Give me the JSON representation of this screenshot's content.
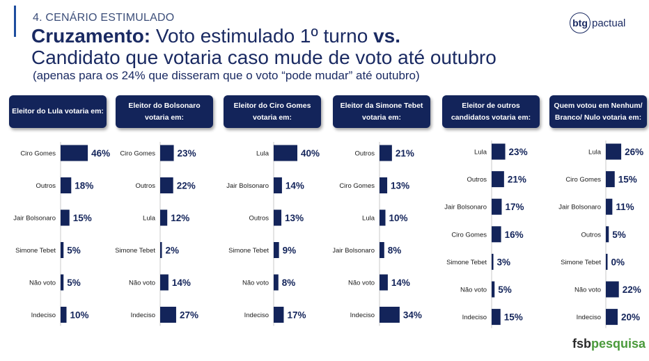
{
  "header": {
    "section": "4. CENÁRIO ESTIMULADO",
    "title_bold": "Cruzamento:",
    "title_rest": " Voto estimulado 1º turno ",
    "title_vs": "vs.",
    "title_line2": "Candidato que votaria caso mude de voto até outubro",
    "subtitle": "(apenas para os 24% que disseram que o voto “pode mudar” até outubro)"
  },
  "logos": {
    "btg_mark": "btg",
    "btg_word": "pactual",
    "fsb_a": "fsb",
    "fsb_b": "pesquisa"
  },
  "colors": {
    "bar": "#13245a",
    "header_bg": "#13245a",
    "text": "#13245a",
    "axis": "#c8c8c8",
    "fsb_green": "#4a9a3b"
  },
  "chart_data": [
    {
      "type": "bar",
      "orientation": "horizontal",
      "title": "Eleitor do Lula votaria em:",
      "categories": [
        "Ciro Gomes",
        "Outros",
        "Jair Bolsonaro",
        "Simone Tebet",
        "Não voto",
        "Indeciso"
      ],
      "values": [
        46,
        18,
        15,
        5,
        5,
        10
      ],
      "value_suffix": "%"
    },
    {
      "type": "bar",
      "orientation": "horizontal",
      "title": "Eleitor do Bolsonaro votaria em:",
      "categories": [
        "Ciro Gomes",
        "Outros",
        "Lula",
        "Simone Tebet",
        "Não voto",
        "Indeciso"
      ],
      "values": [
        23,
        22,
        12,
        2,
        14,
        27
      ],
      "value_suffix": "%"
    },
    {
      "type": "bar",
      "orientation": "horizontal",
      "title": "Eleitor do Ciro Gomes votaria em:",
      "categories": [
        "Lula",
        "Jair Bolsonaro",
        "Outros",
        "Simone Tebet",
        "Não voto",
        "Indeciso"
      ],
      "values": [
        40,
        14,
        13,
        9,
        8,
        17
      ],
      "value_suffix": "%"
    },
    {
      "type": "bar",
      "orientation": "horizontal",
      "title": "Eleitor da Simone Tebet votaria em:",
      "categories": [
        "Outros",
        "Ciro Gomes",
        "Lula",
        "Jair Bolsonaro",
        "Não voto",
        "Indeciso"
      ],
      "values": [
        21,
        13,
        10,
        8,
        14,
        34
      ],
      "value_suffix": "%"
    },
    {
      "type": "bar",
      "orientation": "horizontal",
      "title": "Eleitor de outros candidatos votaria em:",
      "categories": [
        "Lula",
        "Outros",
        "Jair Bolsonaro",
        "Ciro Gomes",
        "Simone Tebet",
        "Não voto",
        "Indeciso"
      ],
      "values": [
        23,
        21,
        17,
        16,
        3,
        5,
        15
      ],
      "value_suffix": "%"
    },
    {
      "type": "bar",
      "orientation": "horizontal",
      "title": "Quem votou em Nenhum/ Branco/ Nulo votaria em:",
      "categories": [
        "Lula",
        "Ciro Gomes",
        "Jair Bolsonaro",
        "Outros",
        "Simone Tebet",
        "Não voto",
        "Indeciso"
      ],
      "values": [
        26,
        15,
        11,
        5,
        0,
        22,
        20
      ],
      "value_suffix": "%"
    }
  ]
}
